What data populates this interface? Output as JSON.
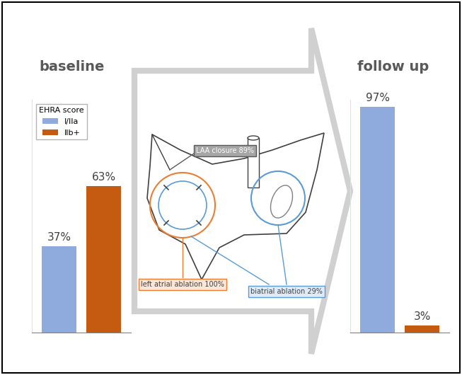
{
  "chart_data": [
    {
      "type": "bar",
      "title": "baseline",
      "categories": [
        null
      ],
      "series": [
        {
          "name": "I/IIa",
          "color": "#8faadc",
          "values": [
            37
          ],
          "value_labels": [
            "37%"
          ]
        },
        {
          "name": "IIb+",
          "color": "#c55a11",
          "values": [
            63
          ],
          "value_labels": [
            "63%"
          ]
        }
      ],
      "ylim": [
        0,
        100
      ],
      "yticks": [],
      "tick_labels": false,
      "data_labels": true,
      "legend": "upper left",
      "legend_title": "EHRA score"
    },
    {
      "type": "bar",
      "title": "follow up",
      "categories": [
        null
      ],
      "series": [
        {
          "color": "#8faadc",
          "values": [
            97
          ],
          "value_labels": [
            "97%"
          ]
        },
        {
          "color": "#c55a11",
          "values": [
            3
          ],
          "value_labels": [
            "3%"
          ]
        }
      ],
      "ylim": [
        0,
        100
      ],
      "yticks": [],
      "tick_labels": false,
      "data_labels": true
    }
  ],
  "diagram": {
    "labels": [
      "LAA closure 89%",
      "left atrial ablation 100%",
      "biatrial ablation 29%"
    ]
  }
}
